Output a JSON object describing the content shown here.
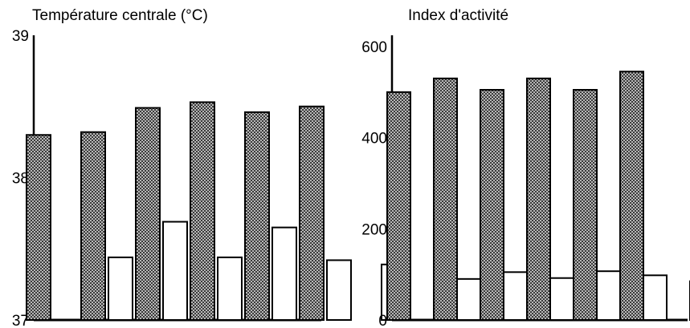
{
  "chart_data": [
    {
      "type": "bar",
      "title": "Température centrale (°C)",
      "xlabel": "",
      "ylabel": "",
      "ylim": [
        37,
        39
      ],
      "yticks": [
        "37",
        "38",
        "39"
      ],
      "grid": false,
      "series": [
        {
          "values": [
            38.3,
            38.32,
            38.49,
            38.53,
            38.46,
            38.5,
            null
          ]
        },
        {
          "values": [
            null,
            37.44,
            37.69,
            37.44,
            37.65,
            37.42,
            37.39
          ]
        }
      ],
      "colors": {
        "dark": "#808080",
        "light": "#ffffff",
        "stroke": "#000000"
      }
    },
    {
      "type": "bar",
      "title": "Index d'activité",
      "xlabel": "",
      "ylabel": "",
      "ylim": [
        0,
        600
      ],
      "yticks": [
        "0",
        "200",
        "400",
        "600"
      ],
      "grid": false,
      "series": [
        {
          "values": [
            500,
            530,
            505,
            530,
            505,
            545,
            null
          ]
        },
        {
          "values": [
            null,
            90,
            105,
            92,
            107,
            98,
            85
          ]
        }
      ],
      "colors": {
        "dark": "#808080",
        "light": "#ffffff",
        "stroke": "#000000"
      }
    }
  ]
}
